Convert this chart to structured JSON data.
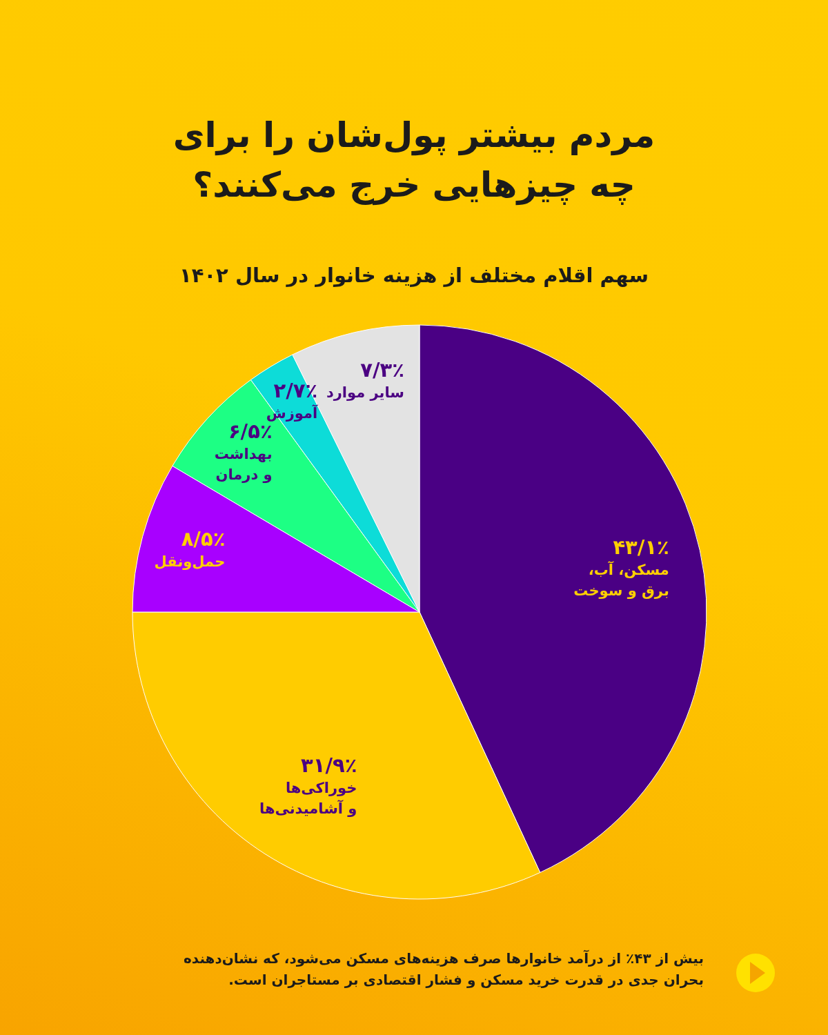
{
  "chart_data": {
    "type": "pie",
    "title": "مردم بیشتر پول‌شان را برای چه چیزهایی خرج می‌کنند؟",
    "subtitle": "سهم اقلام مختلف از هزینه خانوار در سال ۱۴۰۲",
    "categories": [
      "مسکن، آب،\nبرق و سوخت",
      "خوراکی‌ها\nو آشامیدنی‌ها",
      "حمل‌ونقل",
      "بهداشت\nو درمان",
      "آموزش",
      "سایر موارد"
    ],
    "values": [
      43.1,
      31.9,
      8.5,
      6.5,
      2.7,
      7.3
    ],
    "colors": [
      "#4a0084",
      "#ffcc00",
      "#a800ff",
      "#1dff84",
      "#0ddcd8",
      "#e3e3e3"
    ],
    "value_labels": [
      "۴۳/۱٪",
      "۳۱/۹٪",
      "۸/۵٪",
      "۶/۵٪",
      "۲/۷٪",
      "۷/۳٪"
    ],
    "annotations": [
      "بیش از ۴۳٪ از درآمد خانوارها صرف هزینه‌های مسکن می‌شود، که نشان‌دهنده بحران جدی در قدرت خرید مسکن و فشار اقتصادی بر مستاجران است."
    ]
  }
}
